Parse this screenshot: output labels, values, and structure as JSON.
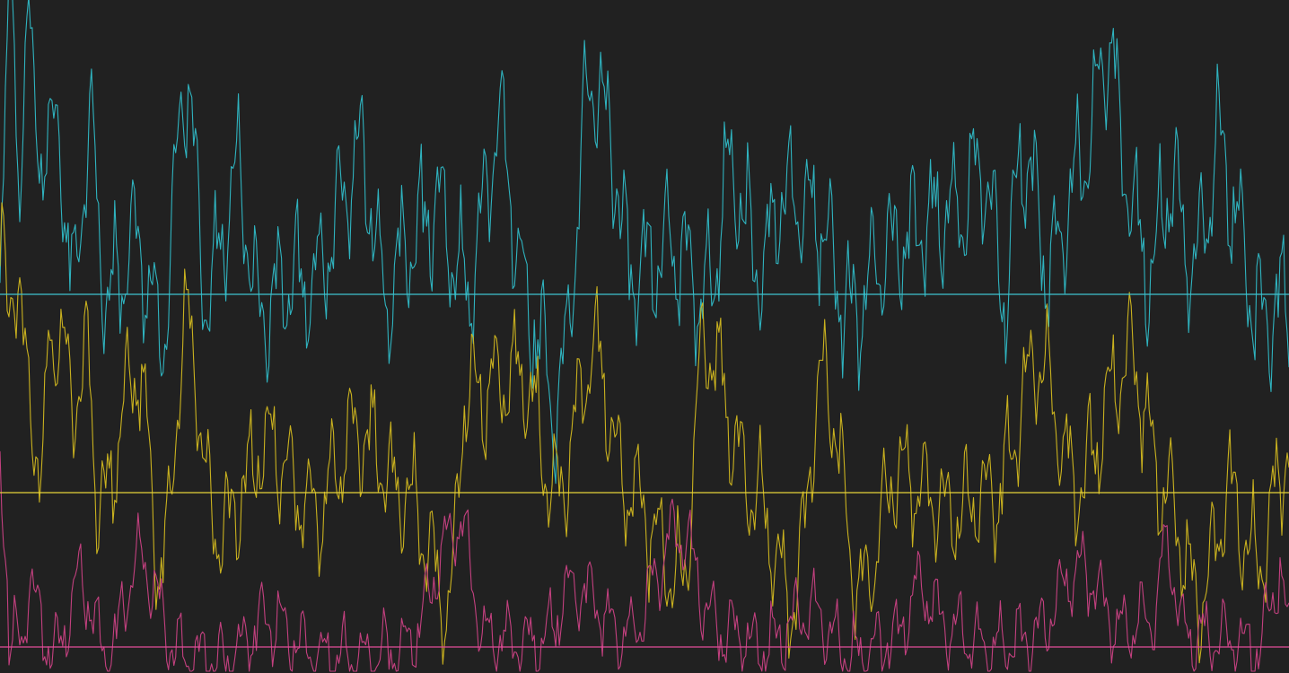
{
  "chart_data": {
    "type": "line",
    "title": "",
    "xlabel": "",
    "ylabel": "",
    "grid": false,
    "legend": "none",
    "background": "#212121",
    "n_points": 720,
    "ylim": [
      0,
      750
    ],
    "series": [
      {
        "key": "cyan",
        "color": "#2fb3bf",
        "baseline": 422,
        "reference_value": 422,
        "reference_color": "#3fc3cf",
        "amplitude_scale": 1.0,
        "anchors": [
          {
            "x": 0,
            "v": 480
          },
          {
            "x": 6,
            "v": 680
          },
          {
            "x": 13,
            "v": 735
          },
          {
            "x": 20,
            "v": 560
          },
          {
            "x": 31,
            "v": 725
          },
          {
            "x": 40,
            "v": 600
          },
          {
            "x": 55,
            "v": 580
          },
          {
            "x": 64,
            "v": 620
          },
          {
            "x": 80,
            "v": 430
          },
          {
            "x": 100,
            "v": 596
          },
          {
            "x": 120,
            "v": 420
          },
          {
            "x": 150,
            "v": 480
          },
          {
            "x": 180,
            "v": 380
          },
          {
            "x": 207,
            "v": 660
          },
          {
            "x": 230,
            "v": 420
          },
          {
            "x": 265,
            "v": 550
          },
          {
            "x": 290,
            "v": 400
          },
          {
            "x": 320,
            "v": 430
          },
          {
            "x": 350,
            "v": 440
          },
          {
            "x": 403,
            "v": 575
          },
          {
            "x": 430,
            "v": 420
          },
          {
            "x": 460,
            "v": 490
          },
          {
            "x": 485,
            "v": 520
          },
          {
            "x": 520,
            "v": 430
          },
          {
            "x": 557,
            "v": 605
          },
          {
            "x": 590,
            "v": 400
          },
          {
            "x": 620,
            "v": 300
          },
          {
            "x": 661,
            "v": 668
          },
          {
            "x": 680,
            "v": 600
          },
          {
            "x": 700,
            "v": 450
          },
          {
            "x": 750,
            "v": 470
          },
          {
            "x": 790,
            "v": 420
          },
          {
            "x": 811,
            "v": 552
          },
          {
            "x": 850,
            "v": 450
          },
          {
            "x": 871,
            "v": 538
          },
          {
            "x": 910,
            "v": 510
          },
          {
            "x": 950,
            "v": 400
          },
          {
            "x": 990,
            "v": 470
          },
          {
            "x": 1030,
            "v": 500
          },
          {
            "x": 1060,
            "v": 510
          },
          {
            "x": 1097,
            "v": 556
          },
          {
            "x": 1120,
            "v": 420
          },
          {
            "x": 1139,
            "v": 582
          },
          {
            "x": 1170,
            "v": 450
          },
          {
            "x": 1200,
            "v": 556
          },
          {
            "x": 1238,
            "v": 702
          },
          {
            "x": 1250,
            "v": 565
          },
          {
            "x": 1280,
            "v": 450
          },
          {
            "x": 1304,
            "v": 540
          },
          {
            "x": 1330,
            "v": 450
          },
          {
            "x": 1359,
            "v": 585
          },
          {
            "x": 1380,
            "v": 500
          },
          {
            "x": 1400,
            "v": 400
          },
          {
            "x": 1436,
            "v": 410
          }
        ]
      },
      {
        "key": "yellow",
        "color": "#c9b11f",
        "baseline": 201,
        "reference_value": 201,
        "reference_color": "#e6d23a",
        "amplitude_scale": 0.85,
        "anchors": [
          {
            "x": 0,
            "v": 460
          },
          {
            "x": 8,
            "v": 420
          },
          {
            "x": 17,
            "v": 440
          },
          {
            "x": 30,
            "v": 330
          },
          {
            "x": 47,
            "v": 210
          },
          {
            "x": 55,
            "v": 390
          },
          {
            "x": 70,
            "v": 350
          },
          {
            "x": 90,
            "v": 300
          },
          {
            "x": 97,
            "v": 367
          },
          {
            "x": 110,
            "v": 180
          },
          {
            "x": 153,
            "v": 340
          },
          {
            "x": 180,
            "v": 120
          },
          {
            "x": 208,
            "v": 385
          },
          {
            "x": 240,
            "v": 160
          },
          {
            "x": 300,
            "v": 250
          },
          {
            "x": 350,
            "v": 180
          },
          {
            "x": 400,
            "v": 270
          },
          {
            "x": 450,
            "v": 200
          },
          {
            "x": 500,
            "v": 80
          },
          {
            "x": 520,
            "v": 310
          },
          {
            "x": 580,
            "v": 330
          },
          {
            "x": 620,
            "v": 200
          },
          {
            "x": 661,
            "v": 360
          },
          {
            "x": 700,
            "v": 200
          },
          {
            "x": 760,
            "v": 100
          },
          {
            "x": 785,
            "v": 370
          },
          {
            "x": 840,
            "v": 200
          },
          {
            "x": 882,
            "v": 80
          },
          {
            "x": 918,
            "v": 330
          },
          {
            "x": 960,
            "v": 90
          },
          {
            "x": 1000,
            "v": 220
          },
          {
            "x": 1060,
            "v": 180
          },
          {
            "x": 1110,
            "v": 200
          },
          {
            "x": 1155,
            "v": 350
          },
          {
            "x": 1200,
            "v": 210
          },
          {
            "x": 1257,
            "v": 350
          },
          {
            "x": 1300,
            "v": 200
          },
          {
            "x": 1335,
            "v": 80
          },
          {
            "x": 1370,
            "v": 200
          },
          {
            "x": 1400,
            "v": 120
          },
          {
            "x": 1436,
            "v": 250
          }
        ]
      },
      {
        "key": "magenta",
        "color": "#c3407f",
        "baseline": 29,
        "reference_value": 29,
        "reference_color": "#e24c9a",
        "amplitude_scale": 0.55,
        "anchors": [
          {
            "x": 0,
            "v": 240
          },
          {
            "x": 3,
            "v": 190
          },
          {
            "x": 8,
            "v": 120
          },
          {
            "x": 10,
            "v": 33
          },
          {
            "x": 25,
            "v": 33
          },
          {
            "x": 32,
            "v": 100
          },
          {
            "x": 45,
            "v": 60
          },
          {
            "x": 60,
            "v": 20
          },
          {
            "x": 90,
            "v": 103
          },
          {
            "x": 120,
            "v": 15
          },
          {
            "x": 155,
            "v": 128
          },
          {
            "x": 200,
            "v": 20
          },
          {
            "x": 250,
            "v": 15
          },
          {
            "x": 300,
            "v": 60
          },
          {
            "x": 350,
            "v": 20
          },
          {
            "x": 400,
            "v": 15
          },
          {
            "x": 450,
            "v": 30
          },
          {
            "x": 513,
            "v": 165
          },
          {
            "x": 540,
            "v": 40
          },
          {
            "x": 600,
            "v": 30
          },
          {
            "x": 640,
            "v": 95
          },
          {
            "x": 700,
            "v": 40
          },
          {
            "x": 755,
            "v": 155
          },
          {
            "x": 800,
            "v": 50
          },
          {
            "x": 850,
            "v": 30
          },
          {
            "x": 900,
            "v": 70
          },
          {
            "x": 950,
            "v": 20
          },
          {
            "x": 1000,
            "v": 40
          },
          {
            "x": 1022,
            "v": 95
          },
          {
            "x": 1060,
            "v": 50
          },
          {
            "x": 1100,
            "v": 30
          },
          {
            "x": 1150,
            "v": 40
          },
          {
            "x": 1205,
            "v": 115
          },
          {
            "x": 1250,
            "v": 50
          },
          {
            "x": 1285,
            "v": 60
          },
          {
            "x": 1300,
            "v": 145
          },
          {
            "x": 1320,
            "v": 40
          },
          {
            "x": 1360,
            "v": 40
          },
          {
            "x": 1400,
            "v": 30
          },
          {
            "x": 1425,
            "v": 110
          },
          {
            "x": 1436,
            "v": 40
          }
        ]
      }
    ]
  }
}
